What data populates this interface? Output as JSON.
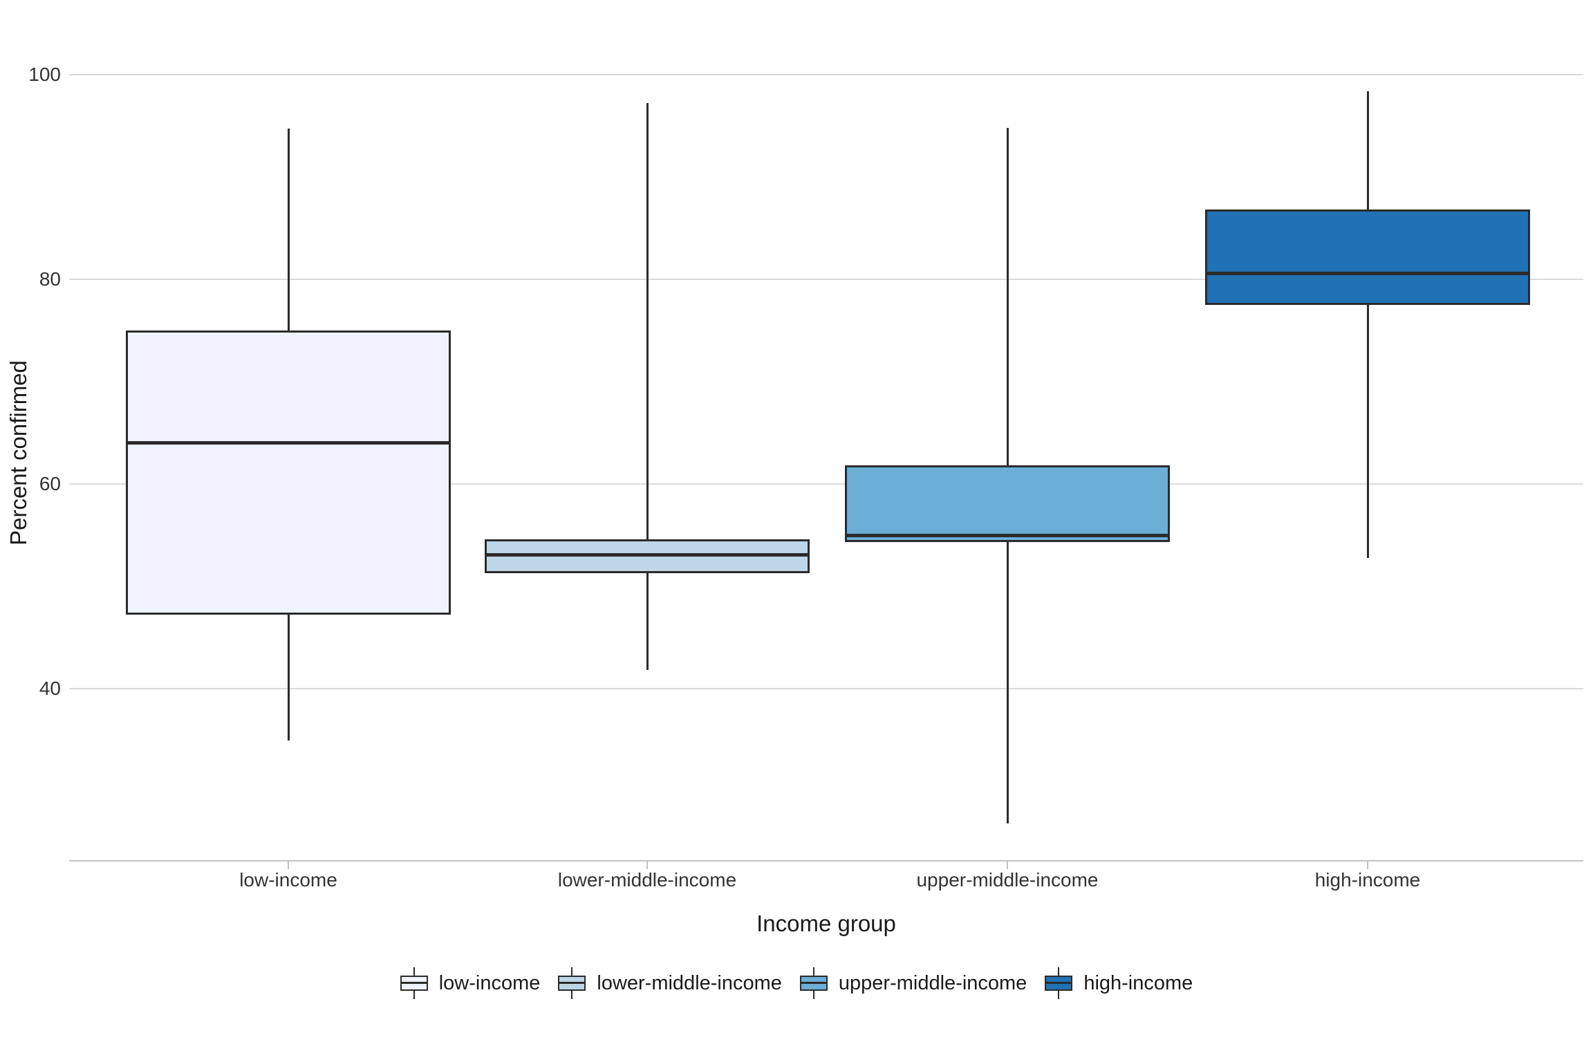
{
  "figure": {
    "background": "#ffffff"
  },
  "chart_data": {
    "type": "boxplot",
    "title": "",
    "xlabel": "Income group",
    "ylabel": "Percent confirmed",
    "categories": [
      "low-income",
      "lower-middle-income",
      "upper-middle-income",
      "high-income"
    ],
    "yticks": [
      40,
      60,
      80,
      100
    ],
    "ylim": [
      23,
      103
    ],
    "grid": "horizontal-major-only",
    "legend_position": "bottom-center",
    "series": [
      {
        "name": "low-income",
        "min": 34.9,
        "q1": 47.2,
        "median": 64.0,
        "q3": 75.0,
        "max": 94.7,
        "fill": "#EFF3FF"
      },
      {
        "name": "lower-middle-income",
        "min": 41.8,
        "q1": 51.3,
        "median": 53.1,
        "q3": 54.6,
        "max": 97.2,
        "fill": "#BDD7E7"
      },
      {
        "name": "upper-middle-income",
        "min": 26.8,
        "q1": 54.3,
        "median": 55.0,
        "q3": 61.8,
        "max": 94.8,
        "fill": "#6BAED6"
      },
      {
        "name": "high-income",
        "min": 52.8,
        "q1": 77.5,
        "median": 80.6,
        "q3": 86.8,
        "max": 98.4,
        "fill": "#2171B5"
      }
    ],
    "colors": {
      "box_stroke": "#2B2B2B",
      "gridline": "#DBDBDB",
      "axis_line": "#C2C2C2",
      "tick_text": "#333333",
      "title_text": "#1A1A1A",
      "background": "#FFFFFF"
    }
  }
}
